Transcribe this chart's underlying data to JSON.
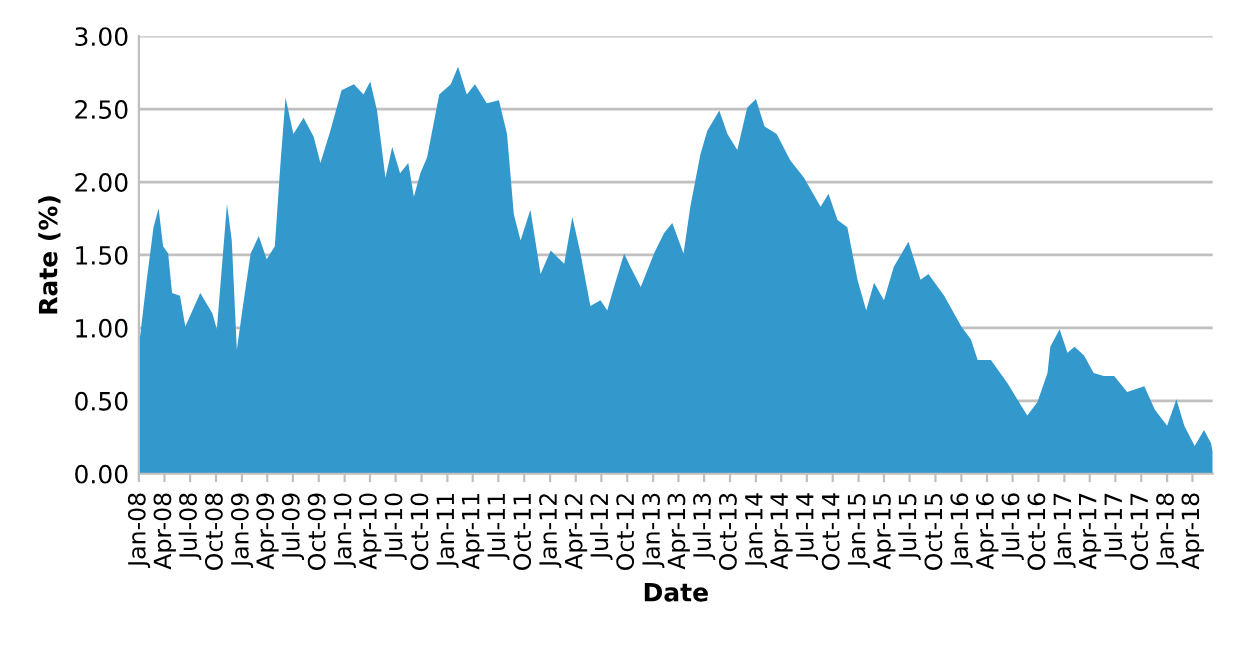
{
  "chart_data": {
    "type": "area",
    "xlabel": "Date",
    "ylabel": "Rate (%)",
    "grid": "y",
    "legend": false,
    "ylim": [
      0,
      3
    ],
    "yticks": [
      {
        "value": 0,
        "label": "0.00"
      },
      {
        "value": 0.5,
        "label": "0.50"
      },
      {
        "value": 1,
        "label": "1.00"
      },
      {
        "value": 1.5,
        "label": "1.50"
      },
      {
        "value": 2,
        "label": "2.00"
      },
      {
        "value": 2.5,
        "label": "2.50"
      },
      {
        "value": 3,
        "label": "3.00"
      }
    ],
    "xlim": [
      "2008-01-01",
      "2018-06-12"
    ],
    "xticks": [
      {
        "value": "2008-01-01",
        "label": "Jan-08"
      },
      {
        "value": "2008-04-01",
        "label": "Apr-08"
      },
      {
        "value": "2008-07-01",
        "label": "Jul-08"
      },
      {
        "value": "2008-10-01",
        "label": "Oct-08"
      },
      {
        "value": "2009-01-01",
        "label": "Jan-09"
      },
      {
        "value": "2009-04-01",
        "label": "Apr-09"
      },
      {
        "value": "2009-07-01",
        "label": "Jul-09"
      },
      {
        "value": "2009-10-01",
        "label": "Oct-09"
      },
      {
        "value": "2010-01-01",
        "label": "Jan-10"
      },
      {
        "value": "2010-04-01",
        "label": "Apr-10"
      },
      {
        "value": "2010-07-01",
        "label": "Jul-10"
      },
      {
        "value": "2010-10-01",
        "label": "Oct-10"
      },
      {
        "value": "2011-01-01",
        "label": "Jan-11"
      },
      {
        "value": "2011-04-01",
        "label": "Apr-11"
      },
      {
        "value": "2011-07-01",
        "label": "Jul-11"
      },
      {
        "value": "2011-10-01",
        "label": "Oct-11"
      },
      {
        "value": "2012-01-01",
        "label": "Jan-12"
      },
      {
        "value": "2012-04-01",
        "label": "Apr-12"
      },
      {
        "value": "2012-07-01",
        "label": "Jul-12"
      },
      {
        "value": "2012-10-01",
        "label": "Oct-12"
      },
      {
        "value": "2013-01-01",
        "label": "Jan-13"
      },
      {
        "value": "2013-04-01",
        "label": "Apr-13"
      },
      {
        "value": "2013-07-01",
        "label": "Jul-13"
      },
      {
        "value": "2013-10-01",
        "label": "Oct-13"
      },
      {
        "value": "2014-01-01",
        "label": "Jan-14"
      },
      {
        "value": "2014-04-01",
        "label": "Apr-14"
      },
      {
        "value": "2014-07-01",
        "label": "Jul-14"
      },
      {
        "value": "2014-10-01",
        "label": "Oct-14"
      },
      {
        "value": "2015-01-01",
        "label": "Jan-15"
      },
      {
        "value": "2015-04-01",
        "label": "Apr-15"
      },
      {
        "value": "2015-07-01",
        "label": "Jul-15"
      },
      {
        "value": "2015-10-01",
        "label": "Oct-15"
      },
      {
        "value": "2016-01-01",
        "label": "Jan-16"
      },
      {
        "value": "2016-04-01",
        "label": "Apr-16"
      },
      {
        "value": "2016-07-01",
        "label": "Jul-16"
      },
      {
        "value": "2016-10-01",
        "label": "Oct-16"
      },
      {
        "value": "2017-01-01",
        "label": "Jan-17"
      },
      {
        "value": "2017-04-01",
        "label": "Apr-17"
      },
      {
        "value": "2017-07-01",
        "label": "Jul-17"
      },
      {
        "value": "2017-10-01",
        "label": "Oct-17"
      },
      {
        "value": "2018-01-01",
        "label": "Jan-18"
      },
      {
        "value": "2018-04-01",
        "label": "Apr-18"
      }
    ],
    "x": [
      "2008-01-01",
      "2008-01-29",
      "2008-02-22",
      "2008-03-11",
      "2008-03-27",
      "2008-04-14",
      "2008-04-28",
      "2008-05-26",
      "2008-06-14",
      "2008-08-06",
      "2008-09-18",
      "2008-10-04",
      "2008-11-09",
      "2008-11-26",
      "2008-12-14",
      "2009-01-01",
      "2009-02-01",
      "2009-03-02",
      "2009-03-30",
      "2009-04-28",
      "2009-05-17",
      "2009-06-05",
      "2009-07-03",
      "2009-08-08",
      "2009-09-13",
      "2009-10-07",
      "2009-11-11",
      "2009-12-21",
      "2010-02-03",
      "2010-03-09",
      "2010-04-02",
      "2010-04-26",
      "2010-05-26",
      "2010-06-19",
      "2010-07-17",
      "2010-08-15",
      "2010-09-04",
      "2010-09-27",
      "2010-10-21",
      "2010-12-03",
      "2011-01-13",
      "2011-02-08",
      "2011-03-11",
      "2011-04-09",
      "2011-05-21",
      "2011-07-03",
      "2011-08-01",
      "2011-08-25",
      "2011-09-18",
      "2011-10-23",
      "2011-11-28",
      "2012-01-03",
      "2012-02-20",
      "2012-03-20",
      "2012-04-18",
      "2012-05-23",
      "2012-06-28",
      "2012-07-22",
      "2012-08-15",
      "2012-09-20",
      "2012-10-12",
      "2012-11-18",
      "2013-01-04",
      "2013-02-09",
      "2013-03-10",
      "2013-04-19",
      "2013-05-13",
      "2013-06-18",
      "2013-07-12",
      "2013-08-24",
      "2013-09-22",
      "2013-10-27",
      "2013-12-01",
      "2014-01-01",
      "2014-02-01",
      "2014-03-16",
      "2014-05-03",
      "2014-06-21",
      "2014-08-19",
      "2014-09-16",
      "2014-10-18",
      "2014-11-22",
      "2014-12-28",
      "2015-01-28",
      "2015-02-25",
      "2015-04-01",
      "2015-05-06",
      "2015-06-27",
      "2015-08-09",
      "2015-09-06",
      "2015-11-01",
      "2016-01-01",
      "2016-02-04",
      "2016-02-28",
      "2016-04-15",
      "2016-06-13",
      "2016-08-22",
      "2016-09-27",
      "2016-11-02",
      "2016-11-12",
      "2016-12-15",
      "2017-01-12",
      "2017-02-06",
      "2017-03-12",
      "2017-04-15",
      "2017-05-21",
      "2017-06-27",
      "2017-08-12",
      "2017-10-12",
      "2017-11-18",
      "2018-01-01",
      "2018-02-03",
      "2018-03-03",
      "2018-04-09",
      "2018-05-12",
      "2018-06-06",
      "2018-06-12"
    ],
    "series": [
      {
        "color": "#3399cc",
        "values": [
          0.87,
          1.33,
          1.69,
          1.82,
          1.56,
          1.51,
          1.24,
          1.22,
          1.01,
          1.24,
          1.1,
          0.99,
          1.85,
          1.6,
          0.85,
          1.1,
          1.51,
          1.63,
          1.47,
          1.56,
          2.1,
          2.58,
          2.33,
          2.44,
          2.31,
          2.13,
          2.35,
          2.63,
          2.67,
          2.6,
          2.69,
          2.49,
          2.03,
          2.24,
          2.06,
          2.13,
          1.9,
          2.06,
          2.17,
          2.6,
          2.67,
          2.79,
          2.6,
          2.67,
          2.54,
          2.56,
          2.33,
          1.78,
          1.6,
          1.81,
          1.37,
          1.53,
          1.44,
          1.76,
          1.51,
          1.15,
          1.19,
          1.12,
          1.28,
          1.51,
          1.42,
          1.28,
          1.51,
          1.65,
          1.72,
          1.51,
          1.83,
          2.19,
          2.35,
          2.49,
          2.33,
          2.22,
          2.51,
          2.57,
          2.38,
          2.33,
          2.15,
          2.03,
          1.83,
          1.92,
          1.74,
          1.69,
          1.33,
          1.12,
          1.31,
          1.19,
          1.42,
          1.59,
          1.33,
          1.37,
          1.22,
          1.01,
          0.92,
          0.78,
          0.78,
          0.62,
          0.4,
          0.49,
          0.69,
          0.87,
          0.99,
          0.83,
          0.87,
          0.81,
          0.69,
          0.67,
          0.67,
          0.56,
          0.6,
          0.44,
          0.33,
          0.51,
          0.33,
          0.19,
          0.3,
          0.21,
          0.15
        ]
      }
    ]
  }
}
